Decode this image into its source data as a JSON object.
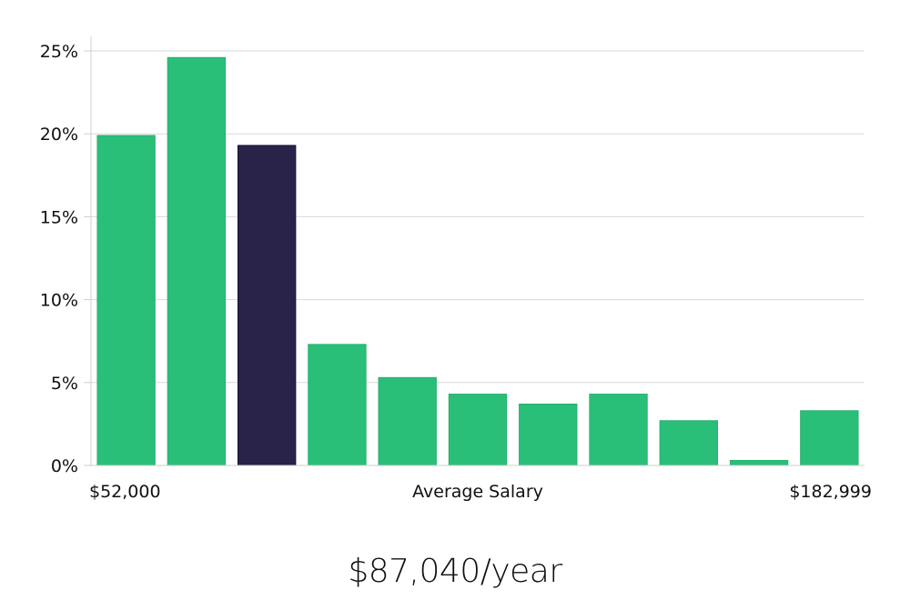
{
  "chart_data": {
    "type": "bar",
    "values": [
      19.9,
      24.6,
      19.3,
      7.3,
      5.3,
      4.3,
      3.7,
      4.3,
      2.7,
      0.3,
      3.3
    ],
    "highlight_index": 2,
    "ylim": [
      0,
      25
    ],
    "yticks": [
      0,
      5,
      10,
      15,
      20,
      25
    ],
    "ytick_labels": [
      "0%",
      "5%",
      "10%",
      "15%",
      "20%",
      "25%"
    ],
    "xlabel": "Average Salary",
    "x_min_label": "$52,000",
    "x_max_label": "$182,999",
    "grid": true,
    "colors": {
      "bar": "#2abf78",
      "highlight": "#29234a",
      "grid": "#d9d9d9",
      "axis": "#cfcfcf"
    }
  },
  "summary": {
    "salary": "$87,040/year"
  }
}
